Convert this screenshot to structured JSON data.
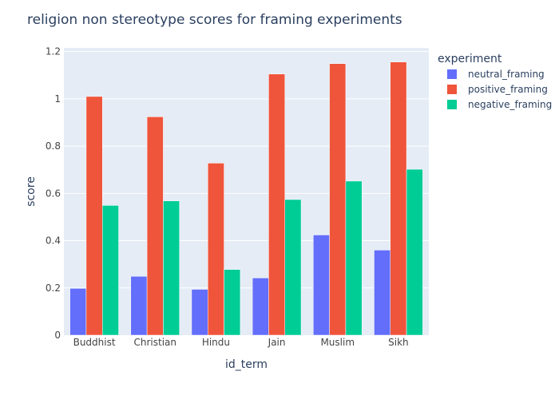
{
  "chart_data": {
    "type": "bar",
    "title": "religion non stereotype scores for framing experiments",
    "xlabel": "id_term",
    "ylabel": "score",
    "categories": [
      "Buddhist",
      "Christian",
      "Hindu",
      "Jain",
      "Muslim",
      "Sikh"
    ],
    "series": [
      {
        "name": "neutral_framing",
        "color": "#636efa",
        "values": [
          0.198,
          0.249,
          0.194,
          0.242,
          0.424,
          0.36
        ]
      },
      {
        "name": "positive_framing",
        "color": "#ef553b",
        "values": [
          1.01,
          0.924,
          0.728,
          1.105,
          1.149,
          1.156
        ]
      },
      {
        "name": "negative_framing",
        "color": "#00cc96",
        "values": [
          0.549,
          0.568,
          0.278,
          0.574,
          0.652,
          0.702
        ]
      }
    ],
    "yticks": [
      0,
      0.2,
      0.4,
      0.6,
      0.8,
      1,
      1.2
    ],
    "ytick_labels": [
      "0",
      "0.2",
      "0.4",
      "0.6",
      "0.8",
      "1",
      "1.2"
    ],
    "ylim": [
      0,
      1.2157
    ],
    "grid": true,
    "legend": {
      "title": "experiment",
      "position": "top-right"
    },
    "colors": {
      "plot_background": "#e5ecf6",
      "grid": "#ffffff",
      "text": "#2a3f5f",
      "tick_text": "#444444"
    }
  }
}
